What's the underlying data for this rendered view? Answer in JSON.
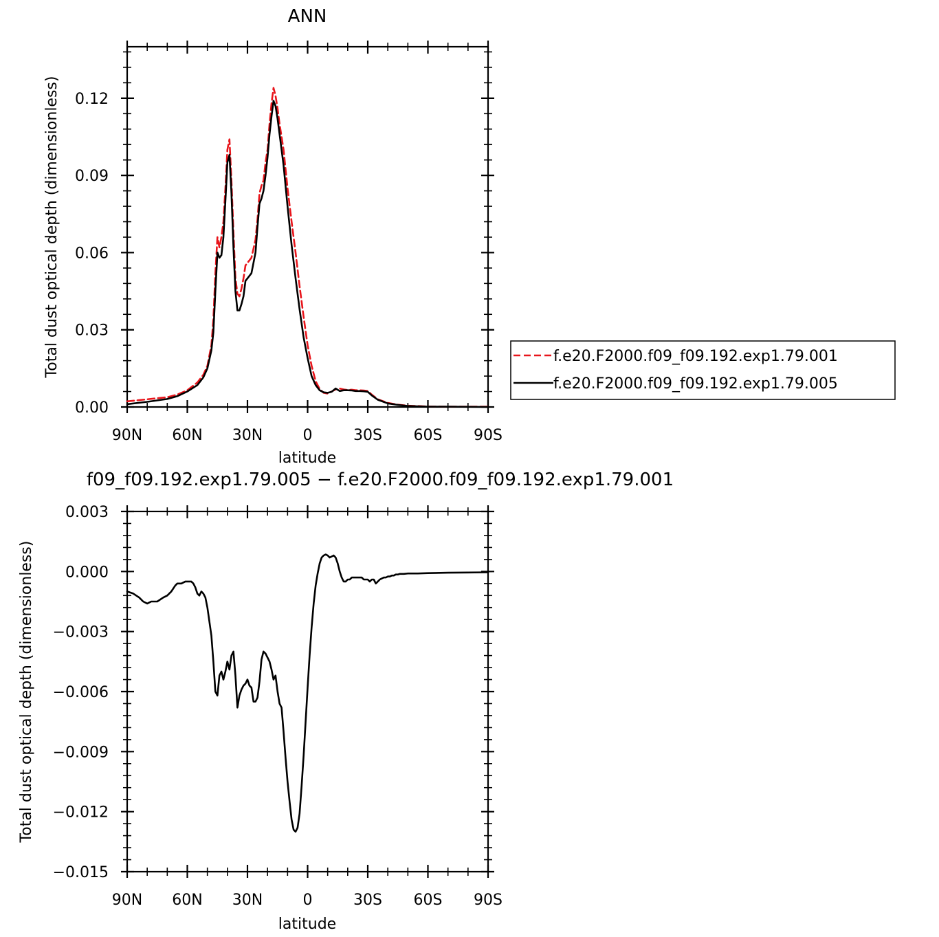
{
  "chart_data": [
    {
      "type": "line",
      "title": "ANN",
      "xlabel": "latitude",
      "ylabel": "Total dust optical depth (dimensionless)",
      "xlim": [
        90,
        -90
      ],
      "ylim": [
        0,
        0.14
      ],
      "x_ticks": [
        90,
        60,
        30,
        0,
        -30,
        -60,
        -90
      ],
      "x_tick_labels": [
        "90N",
        "60N",
        "30N",
        "0",
        "30S",
        "60S",
        "90S"
      ],
      "y_ticks": [
        0,
        0.03,
        0.06,
        0.09,
        0.12
      ],
      "y_tick_labels": [
        "0.00",
        "0.03",
        "0.06",
        "0.09",
        "0.12"
      ],
      "legend_position": "right",
      "series": [
        {
          "name": "f.e20.F2000.f09_f09.192.exp1.79.001",
          "color": "#e8151b",
          "dash": "dashed",
          "x": [
            90,
            80,
            70,
            65,
            60,
            55,
            52,
            50,
            48,
            47,
            46,
            45,
            44,
            43,
            42,
            41,
            40,
            39,
            38,
            37,
            36,
            35,
            34,
            33,
            32,
            31,
            30,
            28,
            26,
            25,
            24,
            23,
            22,
            21,
            20,
            19,
            18,
            17,
            16,
            15,
            14,
            12,
            10,
            8,
            6,
            4,
            2,
            0,
            -2,
            -4,
            -6,
            -8,
            -10,
            -12,
            -14,
            -16,
            -18,
            -20,
            -22,
            -24,
            -26,
            -28,
            -30,
            -32,
            -35,
            -40,
            -45,
            -50,
            -60,
            -70,
            -90
          ],
          "y": [
            0.0022,
            0.003,
            0.0038,
            0.0048,
            0.0065,
            0.0095,
            0.0125,
            0.016,
            0.024,
            0.034,
            0.052,
            0.066,
            0.062,
            0.066,
            0.072,
            0.085,
            0.1,
            0.104,
            0.088,
            0.068,
            0.05,
            0.044,
            0.043,
            0.046,
            0.05,
            0.055,
            0.056,
            0.058,
            0.065,
            0.073,
            0.083,
            0.086,
            0.088,
            0.095,
            0.1,
            0.11,
            0.118,
            0.124,
            0.121,
            0.116,
            0.11,
            0.1,
            0.085,
            0.072,
            0.06,
            0.047,
            0.035,
            0.024,
            0.016,
            0.01,
            0.007,
            0.0055,
            0.0052,
            0.006,
            0.0068,
            0.0072,
            0.0068,
            0.0066,
            0.0067,
            0.0065,
            0.0065,
            0.0064,
            0.0062,
            0.0048,
            0.003,
            0.0016,
            0.0009,
            0.0005,
            0.0002,
            0.0001,
            0.0001
          ]
        },
        {
          "name": "f.e20.F2000.f09_f09.192.exp1.79.005",
          "color": "#000000",
          "dash": "solid",
          "x": [
            90,
            80,
            70,
            65,
            60,
            55,
            52,
            50,
            48,
            47,
            46,
            45,
            44,
            43,
            42,
            41,
            40,
            39,
            38,
            37,
            36,
            35,
            34,
            33,
            32,
            31,
            30,
            28,
            26,
            25,
            24,
            23,
            22,
            21,
            20,
            19,
            18,
            17,
            16,
            15,
            14,
            12,
            10,
            8,
            6,
            4,
            2,
            0,
            -2,
            -4,
            -6,
            -8,
            -10,
            -12,
            -14,
            -16,
            -18,
            -20,
            -22,
            -24,
            -26,
            -28,
            -30,
            -32,
            -35,
            -40,
            -45,
            -50,
            -60,
            -70,
            -90
          ],
          "y": [
            0.0011,
            0.002,
            0.0031,
            0.0042,
            0.006,
            0.0085,
            0.0115,
            0.015,
            0.022,
            0.029,
            0.045,
            0.06,
            0.058,
            0.059,
            0.066,
            0.08,
            0.095,
            0.098,
            0.083,
            0.062,
            0.045,
            0.0375,
            0.0375,
            0.04,
            0.043,
            0.049,
            0.05,
            0.052,
            0.06,
            0.07,
            0.079,
            0.081,
            0.084,
            0.09,
            0.097,
            0.106,
            0.113,
            0.119,
            0.117,
            0.112,
            0.106,
            0.094,
            0.078,
            0.063,
            0.05,
            0.038,
            0.027,
            0.019,
            0.012,
            0.0085,
            0.0065,
            0.0057,
            0.0055,
            0.0059,
            0.0072,
            0.0062,
            0.0065,
            0.0065,
            0.0064,
            0.0062,
            0.0062,
            0.0061,
            0.0059,
            0.0045,
            0.0028,
            0.0014,
            0.0008,
            0.0004,
            0.0001,
            0.0001,
            0.0
          ]
        }
      ]
    },
    {
      "type": "line",
      "title": "f09_f09.192.exp1.79.005 − f.e20.F2000.f09_f09.192.exp1.79.001",
      "xlabel": "latitude",
      "ylabel": "Total dust optical depth (dimensionless)",
      "xlim": [
        90,
        -90
      ],
      "ylim": [
        -0.015,
        0.003
      ],
      "x_ticks": [
        90,
        60,
        30,
        0,
        -30,
        -60,
        -90
      ],
      "x_tick_labels": [
        "90N",
        "60N",
        "30N",
        "0",
        "30S",
        "60S",
        "90S"
      ],
      "y_ticks": [
        0.003,
        0.0,
        -0.003,
        -0.006,
        -0.009,
        -0.012,
        -0.015
      ],
      "y_tick_labels": [
        "0.003",
        "0.000",
        "−0.003",
        "−0.006",
        "−0.009",
        "−0.012",
        "−0.015"
      ],
      "series": [
        {
          "color": "#000000",
          "dash": "solid",
          "x": [
            90,
            87,
            84,
            82,
            80,
            78,
            75,
            72,
            70,
            68,
            66,
            65,
            63,
            61,
            60,
            59,
            58,
            57,
            56,
            55,
            54,
            53,
            52,
            51,
            50,
            49,
            48,
            47,
            46,
            45,
            44,
            43,
            42,
            41,
            40,
            39,
            38,
            37,
            36,
            35,
            34,
            33,
            32,
            31,
            30,
            29,
            28,
            27,
            26,
            25,
            24,
            23,
            22,
            21,
            20,
            19,
            18,
            17,
            16,
            15,
            14,
            13,
            12,
            11,
            10,
            9,
            8,
            7,
            6,
            5,
            4,
            3,
            2,
            1,
            0,
            -1,
            -2,
            -3,
            -4,
            -5,
            -6,
            -7,
            -8,
            -9,
            -10,
            -11,
            -12,
            -13,
            -14,
            -15,
            -16,
            -17,
            -18,
            -19,
            -20,
            -21,
            -22,
            -23,
            -24,
            -25,
            -26,
            -27,
            -28,
            -29,
            -30,
            -31,
            -32,
            -33,
            -34,
            -35,
            -36,
            -37,
            -38,
            -39,
            -40,
            -41,
            -42,
            -43,
            -44,
            -45,
            -46,
            -48,
            -50,
            -55,
            -60,
            -70,
            -80,
            -90
          ],
          "y": [
            -0.001,
            -0.0011,
            -0.0013,
            -0.0015,
            -0.0016,
            -0.0015,
            -0.0015,
            -0.0013,
            -0.0012,
            -0.001,
            -0.0007,
            -0.0006,
            -0.0006,
            -0.0005,
            -0.0005,
            -0.0005,
            -0.0005,
            -0.0006,
            -0.0008,
            -0.0011,
            -0.0012,
            -0.001,
            -0.0011,
            -0.0013,
            -0.0018,
            -0.0025,
            -0.0032,
            -0.0045,
            -0.006,
            -0.0062,
            -0.0052,
            -0.005,
            -0.0054,
            -0.005,
            -0.0045,
            -0.0049,
            -0.0042,
            -0.004,
            -0.0052,
            -0.0068,
            -0.0062,
            -0.0059,
            -0.0057,
            -0.0056,
            -0.0054,
            -0.0057,
            -0.0058,
            -0.0065,
            -0.0065,
            -0.0063,
            -0.0055,
            -0.0044,
            -0.004,
            -0.0041,
            -0.0043,
            -0.0045,
            -0.0049,
            -0.0054,
            -0.0052,
            -0.006,
            -0.0066,
            -0.0068,
            -0.008,
            -0.0093,
            -0.0105,
            -0.0115,
            -0.0124,
            -0.0129,
            -0.013,
            -0.0128,
            -0.0121,
            -0.0107,
            -0.0092,
            -0.0075,
            -0.0058,
            -0.0042,
            -0.0028,
            -0.0016,
            -0.0007,
            -0.0001,
            0.0004,
            0.0007,
            0.0008,
            0.00085,
            0.0008,
            0.0007,
            0.00075,
            0.0008,
            0.0007,
            0.0004,
            0.0,
            -0.0003,
            -0.0005,
            -0.0005,
            -0.0004,
            -0.0004,
            -0.0003,
            -0.0003,
            -0.0003,
            -0.0003,
            -0.0003,
            -0.0003,
            -0.0004,
            -0.0004,
            -0.0004,
            -0.0005,
            -0.0004,
            -0.0004,
            -0.0006,
            -0.0005,
            -0.0004,
            -0.00035,
            -0.0003,
            -0.0003,
            -0.00025,
            -0.00025,
            -0.0002,
            -0.0002,
            -0.00015,
            -0.00015,
            -0.00012,
            -0.00012,
            -0.0001,
            -0.0001,
            -8e-05,
            -6e-05,
            -5e-05,
            -4e-05
          ]
        }
      ]
    }
  ]
}
